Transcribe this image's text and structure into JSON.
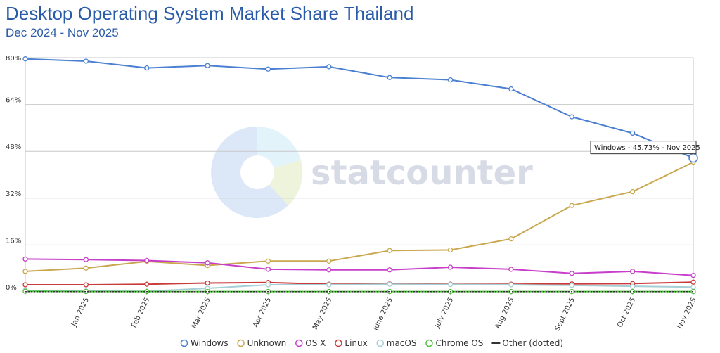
{
  "header": {
    "title": "Desktop Operating System Market Share Thailand",
    "subtitle": "Dec 2024 - Nov 2025"
  },
  "watermark": {
    "text": "statcounter"
  },
  "tooltip": {
    "text": "Windows - 45.73% - Nov 2025",
    "series": "Windows",
    "point_index": 11
  },
  "chart_data": {
    "type": "line",
    "title": "Desktop Operating System Market Share Thailand",
    "subtitle": "Dec 2024 - Nov 2025",
    "categories": [
      "",
      "Jan 2025",
      "Feb 2025",
      "Mar 2025",
      "Apr 2025",
      "May 2025",
      "June 2025",
      "July 2025",
      "Aug 2025",
      "Sept 2025",
      "Oct 2025",
      "Nov 2025"
    ],
    "ylim": [
      0,
      80
    ],
    "yticks": [
      "0%",
      "16%",
      "32%",
      "48%",
      "64%",
      "80%"
    ],
    "ytick_values": [
      0,
      16,
      32,
      48,
      64,
      80
    ],
    "grid": true,
    "legend_position": "bottom",
    "series": [
      {
        "name": "Windows",
        "color": "#4a7fd1",
        "values": [
          79.6,
          78.8,
          76.5,
          77.3,
          76.1,
          76.9,
          73.2,
          72.4,
          69.3,
          59.8,
          54.2,
          45.73
        ]
      },
      {
        "name": "Unknown",
        "color": "#c9a74e",
        "values": [
          7.0,
          8.1,
          10.4,
          9.0,
          10.5,
          10.5,
          14.1,
          14.3,
          18.1,
          29.5,
          34.2,
          44.3
        ]
      },
      {
        "name": "OS X",
        "color": "#c63ec9",
        "values": [
          11.2,
          11.0,
          10.7,
          9.9,
          7.7,
          7.5,
          7.5,
          8.4,
          7.7,
          6.3,
          7.0,
          5.6
        ]
      },
      {
        "name": "Linux",
        "color": "#c93a3a",
        "values": [
          2.4,
          2.4,
          2.6,
          3.0,
          3.2,
          2.6,
          2.7,
          2.6,
          2.6,
          2.7,
          2.8,
          3.3
        ]
      },
      {
        "name": "macOS",
        "color": "#a6cfd6",
        "values": [
          0.5,
          0.3,
          0.2,
          1.2,
          2.4,
          2.4,
          2.6,
          2.5,
          2.4,
          2.2,
          1.9,
          1.6
        ]
      },
      {
        "name": "Chrome OS",
        "color": "#4fbf3a",
        "values": [
          0.2,
          0.1,
          0.1,
          0.1,
          0.1,
          0.1,
          0.1,
          0.1,
          0.1,
          0.1,
          0.1,
          0.1
        ]
      },
      {
        "name": "Other (dotted)",
        "color": "#333333",
        "values": [
          0.05,
          0.05,
          0.05,
          0.05,
          0.05,
          0.05,
          0.05,
          0.05,
          0.05,
          0.05,
          0.05,
          0.05
        ],
        "dotted": true
      }
    ]
  }
}
